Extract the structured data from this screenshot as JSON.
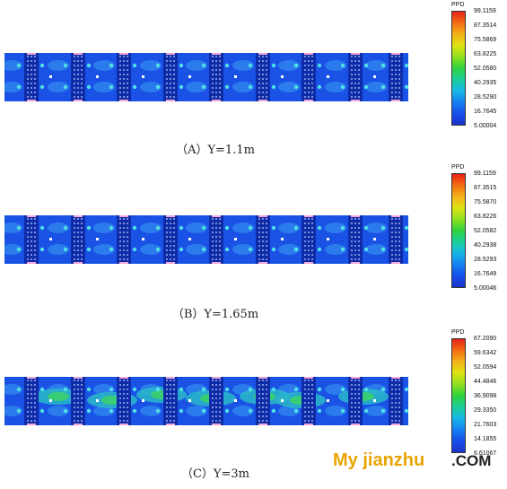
{
  "legend_title": "PPD",
  "panels": [
    {
      "caption": "（A）Y=1.1m",
      "ticks": [
        "99.1159",
        "87.3514",
        "75.5869",
        "63.8225",
        "52.0580",
        "40.2935",
        "28.5290",
        "16.7645",
        "5.00004"
      ]
    },
    {
      "caption": "（B）Y=1.65m",
      "ticks": [
        "99.1159",
        "87.3515",
        "75.5870",
        "63.8226",
        "52.0582",
        "40.2938",
        "28.5293",
        "16.7649",
        "5.00046"
      ]
    },
    {
      "caption": "（C）Y=3m",
      "ticks": [
        "67.2090",
        "59.6342",
        "52.0594",
        "44.4846",
        "36.9098",
        "29.3350",
        "21.7603",
        "14.1855",
        "6.61067"
      ]
    }
  ],
  "watermark": {
    "part1": "My jianzhu",
    "part2": ".COM"
  },
  "colors": {
    "background_field": "#1a52e6",
    "dark_zone": "#0f2ca8",
    "hot_zone": "#3bd06a",
    "watermark_accent": "#e8a400"
  }
}
